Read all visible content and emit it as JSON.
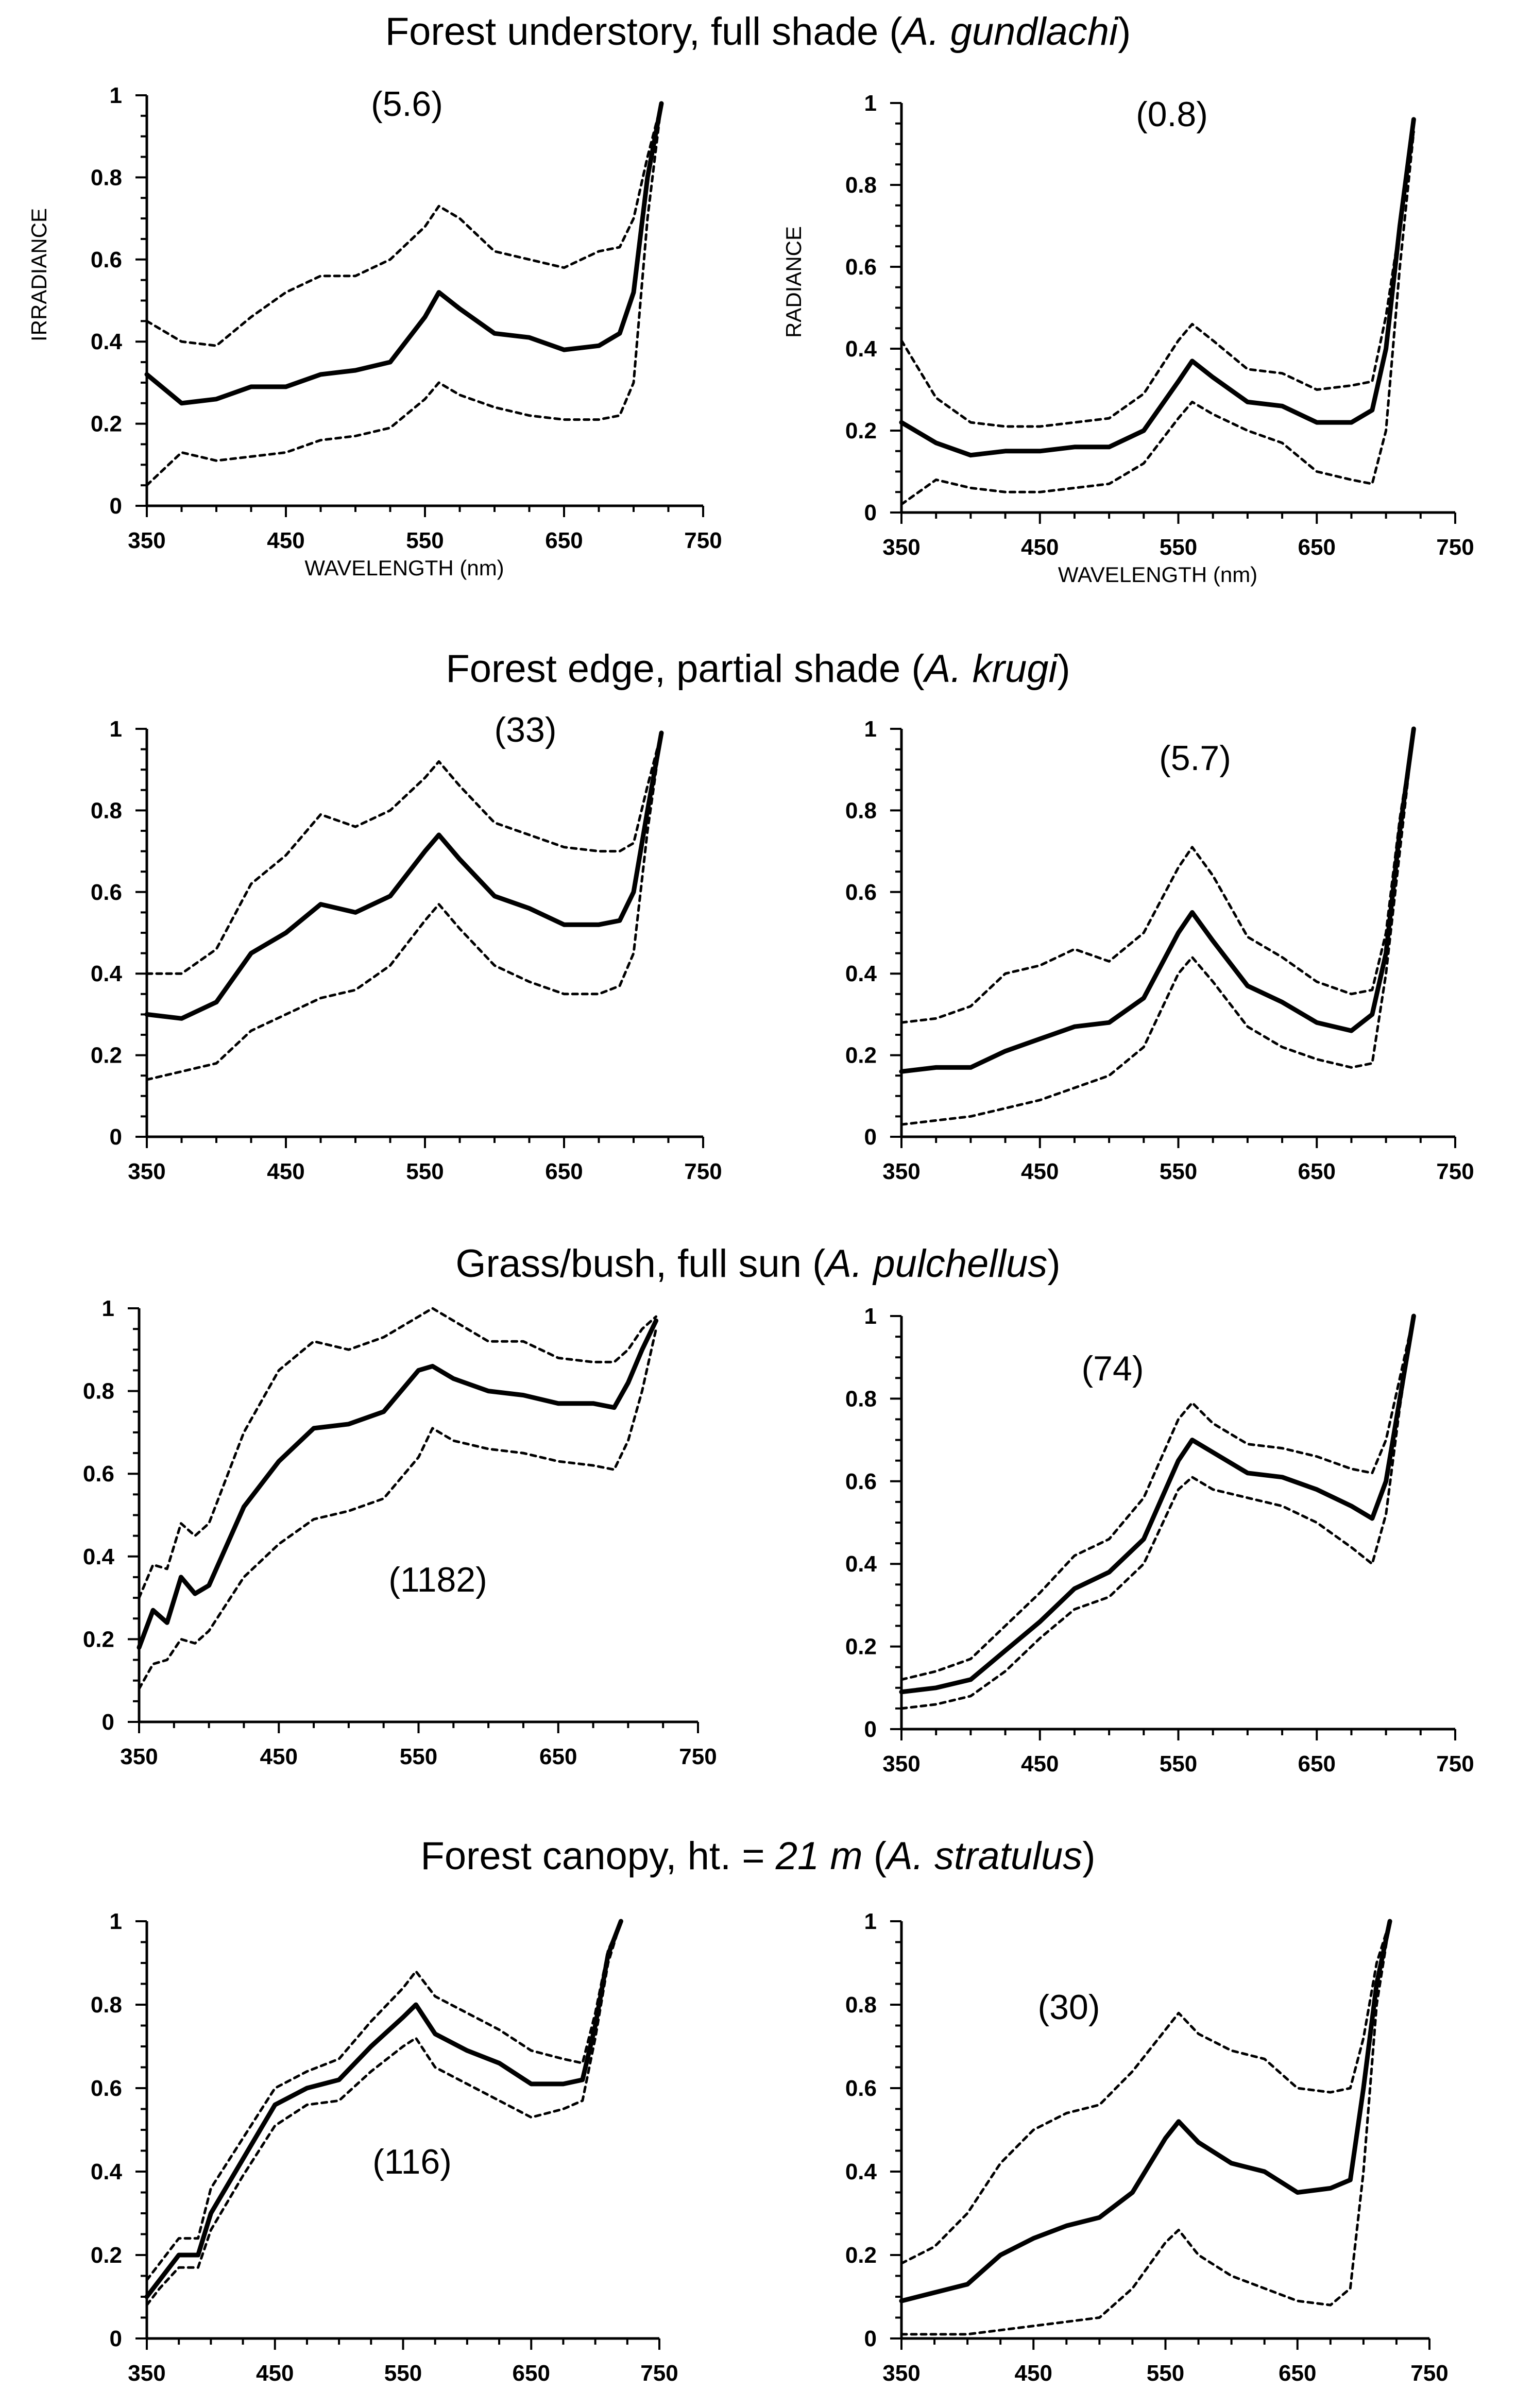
{
  "sections": [
    {
      "text": "Forest understory, full shade (",
      "species": "A. gundlachi",
      "close": ")"
    },
    {
      "text": "Forest edge, partial shade (",
      "species": "A. krugi",
      "close": ")"
    },
    {
      "text": "Grass/bush, full sun (",
      "species": "A. pulchellus",
      "close": ")"
    },
    {
      "text": "Forest canopy, ht. = ",
      "height": "21 m",
      "mid": " (",
      "species": "A. stratulus",
      "close": ")"
    }
  ],
  "chart_data": [
    {
      "type": "line",
      "panel": "r1c1",
      "annotation": "(5.6)",
      "xlabel": "WAVELENGTH (nm)",
      "ylabel": "IRRADIANCE",
      "xlim": [
        350,
        750
      ],
      "ylim": [
        0,
        1
      ],
      "x_ticks": [
        "350",
        "450",
        "550",
        "650",
        "750"
      ],
      "y_ticks": [
        "0",
        "0.2",
        "0.4",
        "0.6",
        "0.8",
        "1"
      ],
      "x": [
        350,
        375,
        400,
        425,
        450,
        475,
        500,
        525,
        550,
        560,
        575,
        600,
        625,
        650,
        675,
        690,
        700,
        710,
        720
      ],
      "series": [
        {
          "style": "mean",
          "values": [
            0.32,
            0.25,
            0.26,
            0.29,
            0.29,
            0.32,
            0.33,
            0.35,
            0.46,
            0.52,
            0.48,
            0.42,
            0.41,
            0.38,
            0.39,
            0.42,
            0.52,
            0.8,
            0.98
          ]
        },
        {
          "style": "upper",
          "values": [
            0.45,
            0.4,
            0.39,
            0.46,
            0.52,
            0.56,
            0.56,
            0.6,
            0.68,
            0.73,
            0.7,
            0.62,
            0.6,
            0.58,
            0.62,
            0.63,
            0.7,
            0.85,
            0.98
          ]
        },
        {
          "style": "lower",
          "values": [
            0.05,
            0.13,
            0.11,
            0.12,
            0.13,
            0.16,
            0.17,
            0.19,
            0.26,
            0.3,
            0.27,
            0.24,
            0.22,
            0.21,
            0.21,
            0.22,
            0.3,
            0.7,
            0.98
          ]
        }
      ]
    },
    {
      "type": "line",
      "panel": "r1c2",
      "annotation": "(0.8)",
      "xlabel": "WAVELENGTH (nm)",
      "ylabel": "RADIANCE",
      "xlim": [
        350,
        750
      ],
      "ylim": [
        0,
        1
      ],
      "x_ticks": [
        "350",
        "450",
        "550",
        "650",
        "750"
      ],
      "y_ticks": [
        "0",
        "0.2",
        "0.4",
        "0.6",
        "0.8",
        "1"
      ],
      "x": [
        350,
        375,
        400,
        425,
        450,
        475,
        500,
        525,
        550,
        560,
        575,
        600,
        625,
        650,
        675,
        690,
        700,
        710,
        720
      ],
      "series": [
        {
          "style": "mean",
          "values": [
            0.22,
            0.17,
            0.14,
            0.15,
            0.15,
            0.16,
            0.16,
            0.2,
            0.32,
            0.37,
            0.33,
            0.27,
            0.26,
            0.22,
            0.22,
            0.25,
            0.4,
            0.7,
            0.96
          ]
        },
        {
          "style": "upper",
          "values": [
            0.42,
            0.28,
            0.22,
            0.21,
            0.21,
            0.22,
            0.23,
            0.29,
            0.42,
            0.46,
            0.42,
            0.35,
            0.34,
            0.3,
            0.31,
            0.32,
            0.48,
            0.7,
            0.93
          ]
        },
        {
          "style": "lower",
          "values": [
            0.02,
            0.08,
            0.06,
            0.05,
            0.05,
            0.06,
            0.07,
            0.12,
            0.23,
            0.27,
            0.24,
            0.2,
            0.17,
            0.1,
            0.08,
            0.07,
            0.2,
            0.6,
            0.93
          ]
        }
      ]
    },
    {
      "type": "line",
      "panel": "r2c1",
      "annotation": "(33)",
      "xlim": [
        350,
        750
      ],
      "ylim": [
        0,
        1
      ],
      "x_ticks": [
        "350",
        "450",
        "550",
        "650",
        "750"
      ],
      "y_ticks": [
        "0",
        "0.2",
        "0.4",
        "0.6",
        "0.8",
        "1"
      ],
      "x": [
        350,
        375,
        400,
        425,
        450,
        475,
        500,
        525,
        550,
        560,
        575,
        600,
        625,
        650,
        675,
        690,
        700,
        710,
        720
      ],
      "series": [
        {
          "style": "mean",
          "values": [
            0.3,
            0.29,
            0.33,
            0.45,
            0.5,
            0.57,
            0.55,
            0.59,
            0.7,
            0.74,
            0.68,
            0.59,
            0.56,
            0.52,
            0.52,
            0.53,
            0.6,
            0.8,
            0.99
          ]
        },
        {
          "style": "upper",
          "values": [
            0.4,
            0.4,
            0.46,
            0.62,
            0.69,
            0.79,
            0.76,
            0.8,
            0.88,
            0.92,
            0.86,
            0.77,
            0.74,
            0.71,
            0.7,
            0.7,
            0.72,
            0.86,
            0.99
          ]
        },
        {
          "style": "lower",
          "values": [
            0.14,
            0.16,
            0.18,
            0.26,
            0.3,
            0.34,
            0.36,
            0.42,
            0.53,
            0.57,
            0.51,
            0.42,
            0.38,
            0.35,
            0.35,
            0.37,
            0.45,
            0.75,
            0.99
          ]
        }
      ]
    },
    {
      "type": "line",
      "panel": "r2c2",
      "annotation": "(5.7)",
      "xlim": [
        350,
        750
      ],
      "ylim": [
        0,
        1
      ],
      "x_ticks": [
        "350",
        "450",
        "550",
        "650",
        "750"
      ],
      "y_ticks": [
        "0",
        "0.2",
        "0.4",
        "0.6",
        "0.8",
        "1"
      ],
      "x": [
        350,
        375,
        400,
        425,
        450,
        475,
        500,
        525,
        550,
        560,
        575,
        600,
        625,
        650,
        675,
        690,
        700,
        710,
        720
      ],
      "series": [
        {
          "style": "mean",
          "values": [
            0.16,
            0.17,
            0.17,
            0.21,
            0.24,
            0.27,
            0.28,
            0.34,
            0.5,
            0.55,
            0.48,
            0.37,
            0.33,
            0.28,
            0.26,
            0.3,
            0.45,
            0.75,
            1.0
          ]
        },
        {
          "style": "upper",
          "values": [
            0.28,
            0.29,
            0.32,
            0.4,
            0.42,
            0.46,
            0.43,
            0.5,
            0.66,
            0.71,
            0.64,
            0.49,
            0.44,
            0.38,
            0.35,
            0.36,
            0.5,
            0.78,
            1.0
          ]
        },
        {
          "style": "lower",
          "values": [
            0.03,
            0.04,
            0.05,
            0.07,
            0.09,
            0.12,
            0.15,
            0.22,
            0.4,
            0.44,
            0.38,
            0.27,
            0.22,
            0.19,
            0.17,
            0.18,
            0.4,
            0.7,
            1.0
          ]
        }
      ]
    },
    {
      "type": "line",
      "panel": "r3c1",
      "annotation": "(1182)",
      "xlim": [
        350,
        750
      ],
      "ylim": [
        0,
        1
      ],
      "x_ticks": [
        "350",
        "450",
        "550",
        "650",
        "750"
      ],
      "y_ticks": [
        "0",
        "0.2",
        "0.4",
        "0.6",
        "0.8",
        "1"
      ],
      "x": [
        350,
        360,
        370,
        380,
        390,
        400,
        425,
        450,
        475,
        500,
        525,
        550,
        560,
        575,
        600,
        625,
        650,
        675,
        690,
        700,
        710,
        720
      ],
      "series": [
        {
          "style": "mean",
          "values": [
            0.18,
            0.27,
            0.24,
            0.35,
            0.31,
            0.33,
            0.52,
            0.63,
            0.71,
            0.72,
            0.75,
            0.85,
            0.86,
            0.83,
            0.8,
            0.79,
            0.77,
            0.77,
            0.76,
            0.82,
            0.9,
            0.97
          ]
        },
        {
          "style": "upper",
          "values": [
            0.3,
            0.38,
            0.37,
            0.48,
            0.45,
            0.48,
            0.7,
            0.85,
            0.92,
            0.9,
            0.93,
            0.98,
            1.0,
            0.97,
            0.92,
            0.92,
            0.88,
            0.87,
            0.87,
            0.9,
            0.95,
            0.98
          ]
        },
        {
          "style": "lower",
          "values": [
            0.08,
            0.14,
            0.15,
            0.2,
            0.19,
            0.22,
            0.35,
            0.43,
            0.49,
            0.51,
            0.54,
            0.64,
            0.71,
            0.68,
            0.66,
            0.65,
            0.63,
            0.62,
            0.61,
            0.68,
            0.8,
            0.95
          ]
        }
      ]
    },
    {
      "type": "line",
      "panel": "r3c2",
      "annotation": "(74)",
      "xlim": [
        350,
        750
      ],
      "ylim": [
        0,
        1
      ],
      "x_ticks": [
        "350",
        "450",
        "550",
        "650",
        "750"
      ],
      "y_ticks": [
        "0",
        "0.2",
        "0.4",
        "0.6",
        "0.8",
        "1"
      ],
      "x": [
        350,
        375,
        400,
        425,
        450,
        475,
        500,
        525,
        550,
        560,
        575,
        600,
        625,
        650,
        675,
        690,
        700,
        710,
        720
      ],
      "series": [
        {
          "style": "mean",
          "values": [
            0.09,
            0.1,
            0.12,
            0.19,
            0.26,
            0.34,
            0.38,
            0.46,
            0.65,
            0.7,
            0.67,
            0.62,
            0.61,
            0.58,
            0.54,
            0.51,
            0.6,
            0.8,
            1.0
          ]
        },
        {
          "style": "upper",
          "values": [
            0.12,
            0.14,
            0.17,
            0.25,
            0.33,
            0.42,
            0.46,
            0.56,
            0.75,
            0.79,
            0.74,
            0.69,
            0.68,
            0.66,
            0.63,
            0.62,
            0.7,
            0.85,
            1.0
          ]
        },
        {
          "style": "lower",
          "values": [
            0.05,
            0.06,
            0.08,
            0.14,
            0.22,
            0.29,
            0.32,
            0.4,
            0.58,
            0.61,
            0.58,
            0.56,
            0.54,
            0.5,
            0.44,
            0.4,
            0.52,
            0.78,
            1.0
          ]
        }
      ]
    },
    {
      "type": "line",
      "panel": "r4c1",
      "annotation": "(116)",
      "xlim": [
        350,
        750
      ],
      "ylim": [
        0,
        1
      ],
      "x_ticks": [
        "350",
        "450",
        "550",
        "650",
        "750"
      ],
      "y_ticks": [
        "0",
        "0.2",
        "0.4",
        "0.6",
        "0.8",
        "1"
      ],
      "x": [
        350,
        360,
        375,
        390,
        400,
        425,
        450,
        475,
        500,
        525,
        550,
        560,
        575,
        600,
        625,
        650,
        675,
        690,
        700,
        710,
        720
      ],
      "series": [
        {
          "style": "mean",
          "values": [
            0.1,
            0.14,
            0.2,
            0.2,
            0.3,
            0.43,
            0.56,
            0.6,
            0.62,
            0.7,
            0.77,
            0.8,
            0.73,
            0.69,
            0.66,
            0.61,
            0.61,
            0.62,
            0.75,
            0.92,
            1.0
          ]
        },
        {
          "style": "upper",
          "values": [
            0.14,
            0.18,
            0.24,
            0.24,
            0.36,
            0.48,
            0.6,
            0.64,
            0.67,
            0.76,
            0.84,
            0.88,
            0.82,
            0.78,
            0.74,
            0.69,
            0.67,
            0.66,
            0.78,
            0.93,
            1.0
          ]
        },
        {
          "style": "lower",
          "values": [
            0.08,
            0.12,
            0.17,
            0.17,
            0.26,
            0.39,
            0.51,
            0.56,
            0.57,
            0.64,
            0.7,
            0.72,
            0.65,
            0.61,
            0.57,
            0.53,
            0.55,
            0.57,
            0.72,
            0.9,
            1.0
          ]
        }
      ]
    },
    {
      "type": "line",
      "panel": "r4c2",
      "annotation": "(30)",
      "xlim": [
        350,
        750
      ],
      "ylim": [
        0,
        1
      ],
      "x_ticks": [
        "350",
        "450",
        "550",
        "650",
        "750"
      ],
      "y_ticks": [
        "0",
        "0.2",
        "0.4",
        "0.6",
        "0.8",
        "1"
      ],
      "x": [
        350,
        375,
        400,
        425,
        450,
        475,
        500,
        525,
        550,
        560,
        575,
        600,
        625,
        650,
        675,
        690,
        700,
        710,
        720
      ],
      "series": [
        {
          "style": "mean",
          "values": [
            0.09,
            0.11,
            0.13,
            0.2,
            0.24,
            0.27,
            0.29,
            0.35,
            0.48,
            0.52,
            0.47,
            0.42,
            0.4,
            0.35,
            0.36,
            0.38,
            0.6,
            0.85,
            1.0
          ]
        },
        {
          "style": "upper",
          "values": [
            0.18,
            0.22,
            0.3,
            0.42,
            0.5,
            0.54,
            0.56,
            0.64,
            0.74,
            0.78,
            0.73,
            0.69,
            0.67,
            0.6,
            0.59,
            0.6,
            0.72,
            0.9,
            1.0
          ]
        },
        {
          "style": "lower",
          "values": [
            0.01,
            0.01,
            0.01,
            0.02,
            0.03,
            0.04,
            0.05,
            0.12,
            0.23,
            0.26,
            0.2,
            0.15,
            0.12,
            0.09,
            0.08,
            0.12,
            0.4,
            0.8,
            1.0
          ]
        }
      ]
    }
  ]
}
